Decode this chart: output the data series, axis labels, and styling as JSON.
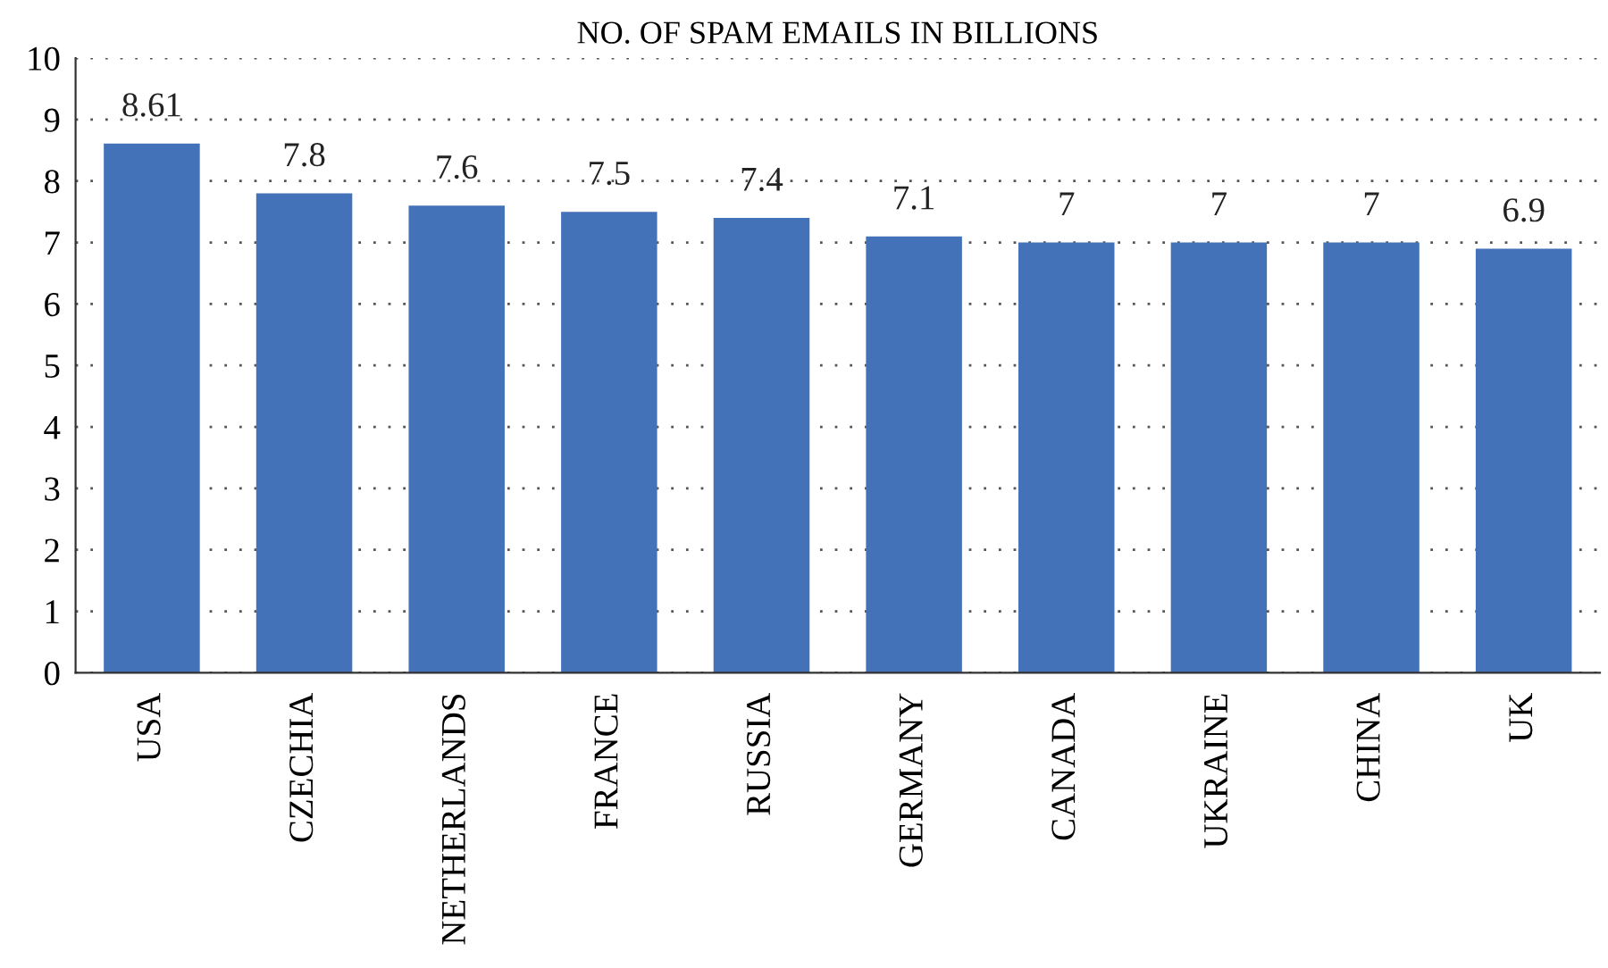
{
  "chart_data": {
    "type": "bar",
    "title": "NO. OF SPAM EMAILS IN BILLIONS",
    "categories": [
      "USA",
      "CZECHIA",
      "NETHERLANDS",
      "FRANCE",
      "RUSSIA",
      "GERMANY",
      "CANADA",
      "UKRAINE",
      "CHINA",
      "UK"
    ],
    "values": [
      8.61,
      7.8,
      7.6,
      7.5,
      7.4,
      7.1,
      7,
      7,
      7,
      6.9
    ],
    "color": "#4472b8",
    "ylim": [
      0,
      10
    ],
    "yticks": [
      0,
      1,
      2,
      3,
      4,
      5,
      6,
      7,
      8,
      9,
      10
    ],
    "grid": "y",
    "data_labels": true
  }
}
